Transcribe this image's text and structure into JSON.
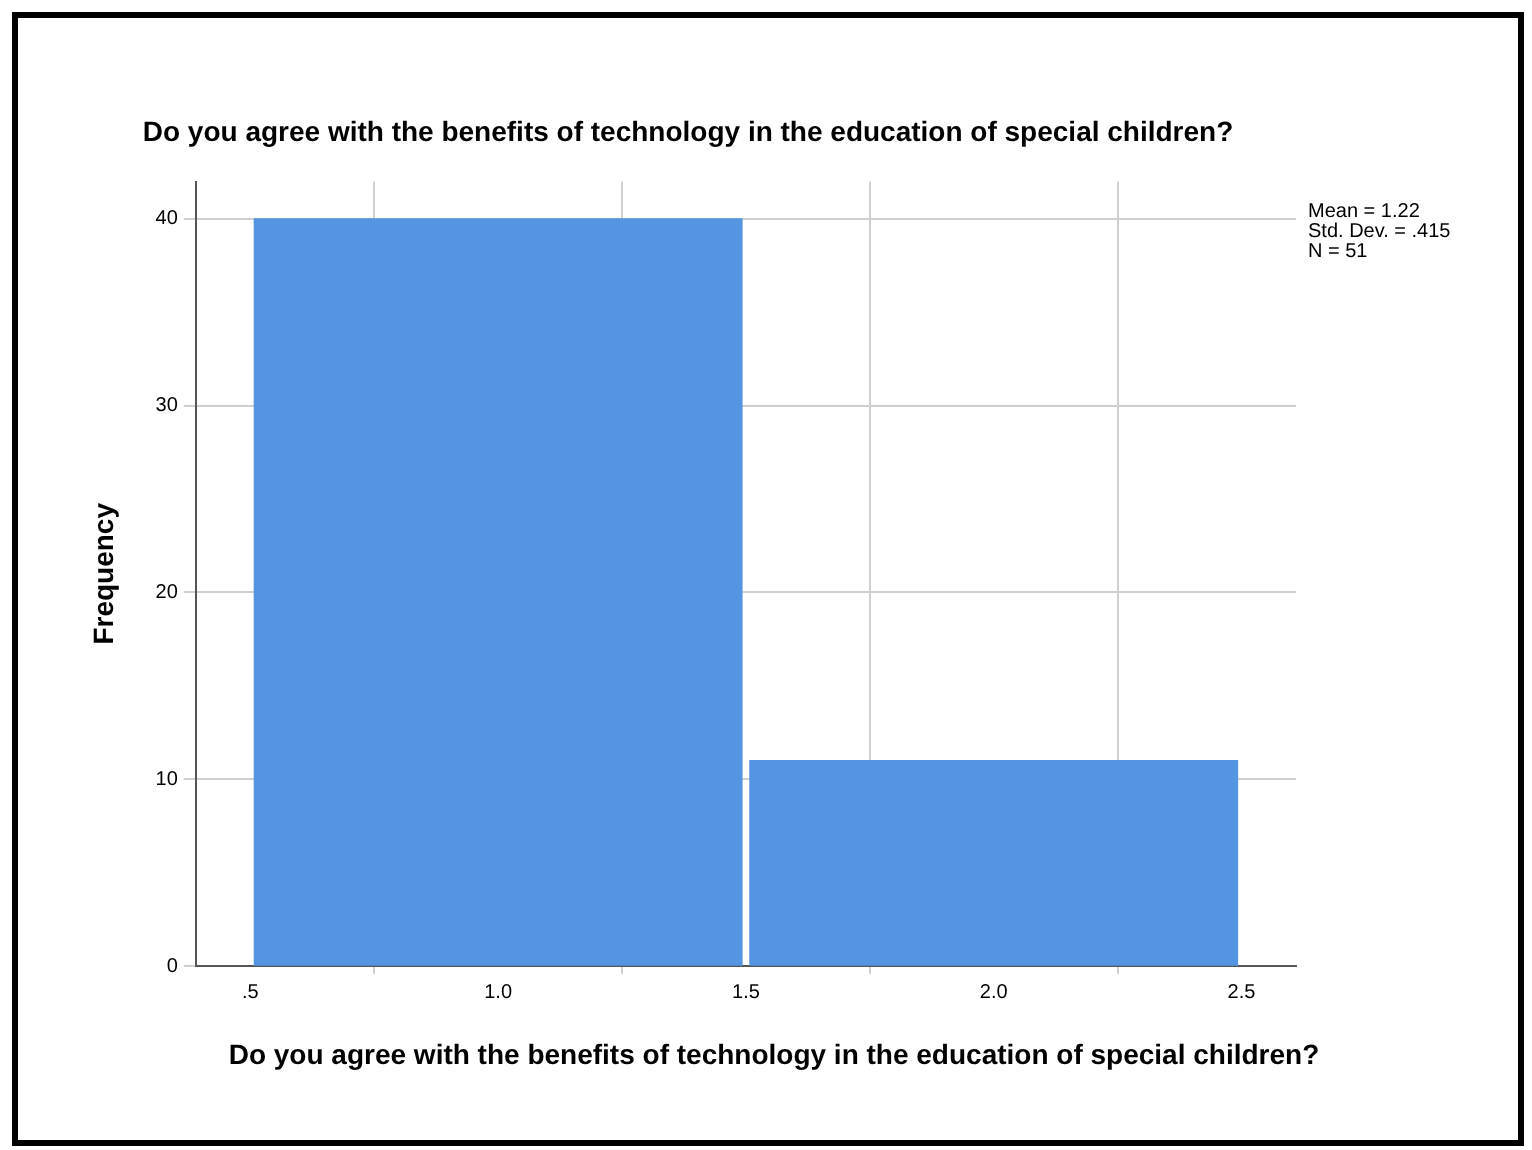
{
  "chart_data": {
    "type": "histogram",
    "title": "Do you agree with the benefits of technology in the education of special children?",
    "xlabel": "Do you agree with the benefits of technology in the education of special children?",
    "ylabel": "Frequency",
    "bins": [
      0.5,
      1.5,
      2.5
    ],
    "values": [
      40,
      11
    ],
    "color": "#5495e2",
    "xlim": [
      0.39,
      2.61
    ],
    "xticks": [
      {
        "value": 0.5,
        "label": ".5"
      },
      {
        "value": 1,
        "label": "1.0"
      },
      {
        "value": 1.5,
        "label": "1.5"
      },
      {
        "value": 2,
        "label": "2.0"
      },
      {
        "value": 2.5,
        "label": "2.5"
      }
    ],
    "ylim": [
      0,
      42
    ],
    "yticks": [
      0,
      10,
      20,
      30,
      40
    ],
    "grid": true,
    "annotations": [
      "Mean = 1.22",
      "Std. Dev. = .415",
      "N = 51"
    ]
  }
}
